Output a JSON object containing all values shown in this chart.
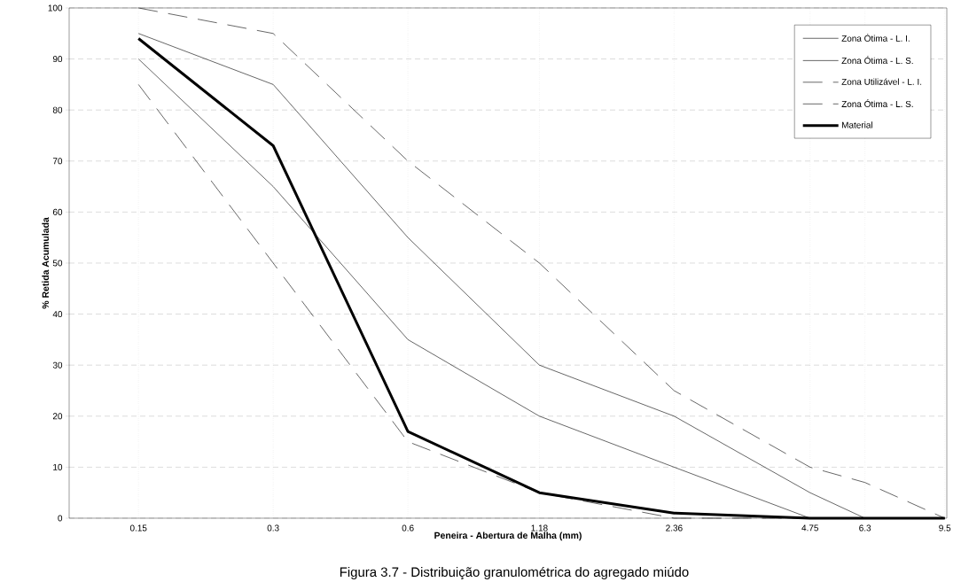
{
  "chart_data": {
    "type": "line",
    "xlabel": "Peneira - Abertura de Malha (mm)",
    "ylabel": "% Retida Acumulada",
    "x": [
      0.15,
      0.3,
      0.6,
      1.18,
      2.36,
      4.75,
      6.3,
      9.5
    ],
    "series": [
      {
        "name": "Zona Ótima - L. I.",
        "color": "#000000",
        "line_style": "solid",
        "values": [
          90,
          65,
          35,
          20,
          10,
          0,
          0,
          0
        ]
      },
      {
        "name": "Zona Ótima - L. S.",
        "color": "#000000",
        "line_style": "solid",
        "values": [
          95,
          85,
          55,
          30,
          20,
          5,
          0,
          0
        ]
      },
      {
        "name": "Zona Utilizável - L. I.",
        "color": "#000000",
        "line_style": "dashed",
        "values": [
          85,
          50,
          15,
          5,
          0,
          0,
          0,
          0
        ]
      },
      {
        "name": "Zona Ótima - L. S.",
        "color": "#000000",
        "line_style": "dashed",
        "values": [
          100,
          95,
          70,
          50,
          25,
          10,
          7,
          0
        ]
      },
      {
        "name": "Material",
        "color": "#000000",
        "line_style": "solid",
        "values": [
          94,
          73,
          17,
          5,
          1,
          0,
          0,
          0
        ]
      }
    ],
    "log": "x",
    "xlim": [
      0.105,
      9.6
    ],
    "xticks": [
      0.15,
      0.3,
      0.6,
      1.18,
      2.36,
      4.75,
      6.3,
      9.5
    ],
    "ylim": [
      0,
      100
    ],
    "yticks": [
      0,
      10,
      20,
      30,
      40,
      50,
      60,
      70,
      80,
      90,
      100
    ],
    "grid": true,
    "legend": "top right",
    "marker": "none",
    "annotations": [
      "Figura 3.7 - Distribuição granulométrica do agregado miúdo"
    ]
  }
}
